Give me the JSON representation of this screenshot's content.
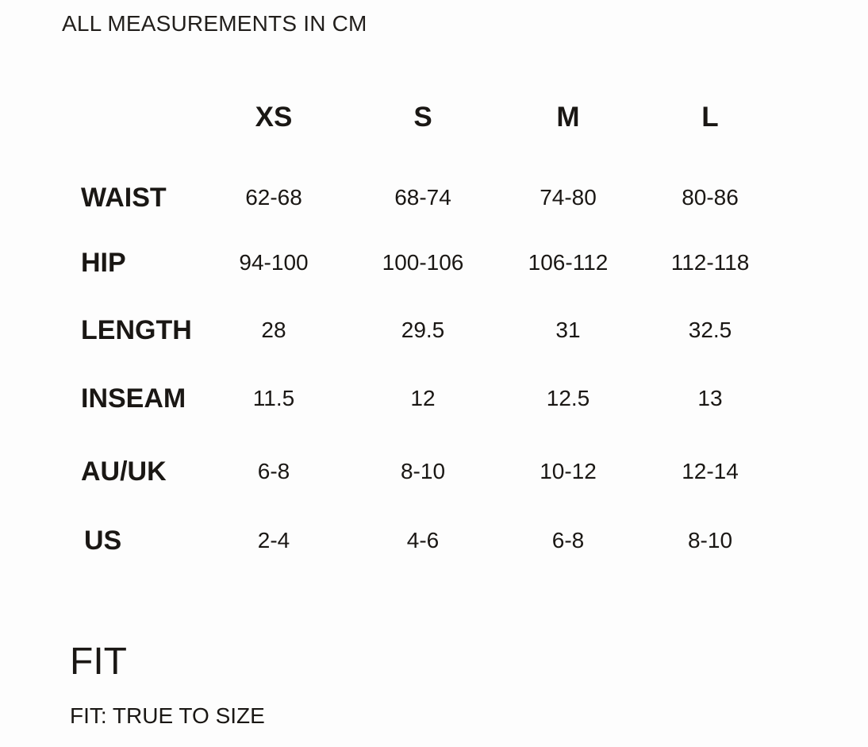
{
  "note": "ALL MEASUREMENTS IN CM",
  "table": {
    "headers": [
      "XS",
      "S",
      "M",
      "L"
    ],
    "rows": [
      {
        "label": "WAIST",
        "values": [
          "62-68",
          "68-74",
          "74-80",
          "80-86"
        ]
      },
      {
        "label": "HIP",
        "values": [
          "94-100",
          "100-106",
          "106-112",
          "112-118"
        ]
      },
      {
        "label": "LENGTH",
        "values": [
          "28",
          "29.5",
          "31",
          "32.5"
        ]
      },
      {
        "label": "INSEAM",
        "values": [
          "11.5",
          "12",
          "12.5",
          "13"
        ]
      },
      {
        "label": "AU/UK",
        "values": [
          "6-8",
          "8-10",
          "10-12",
          "12-14"
        ]
      },
      {
        "label": "US",
        "values": [
          "2-4",
          "4-6",
          "6-8",
          "8-10"
        ]
      }
    ]
  },
  "fit": {
    "heading": "FIT",
    "text": "FIT: TRUE TO SIZE"
  }
}
